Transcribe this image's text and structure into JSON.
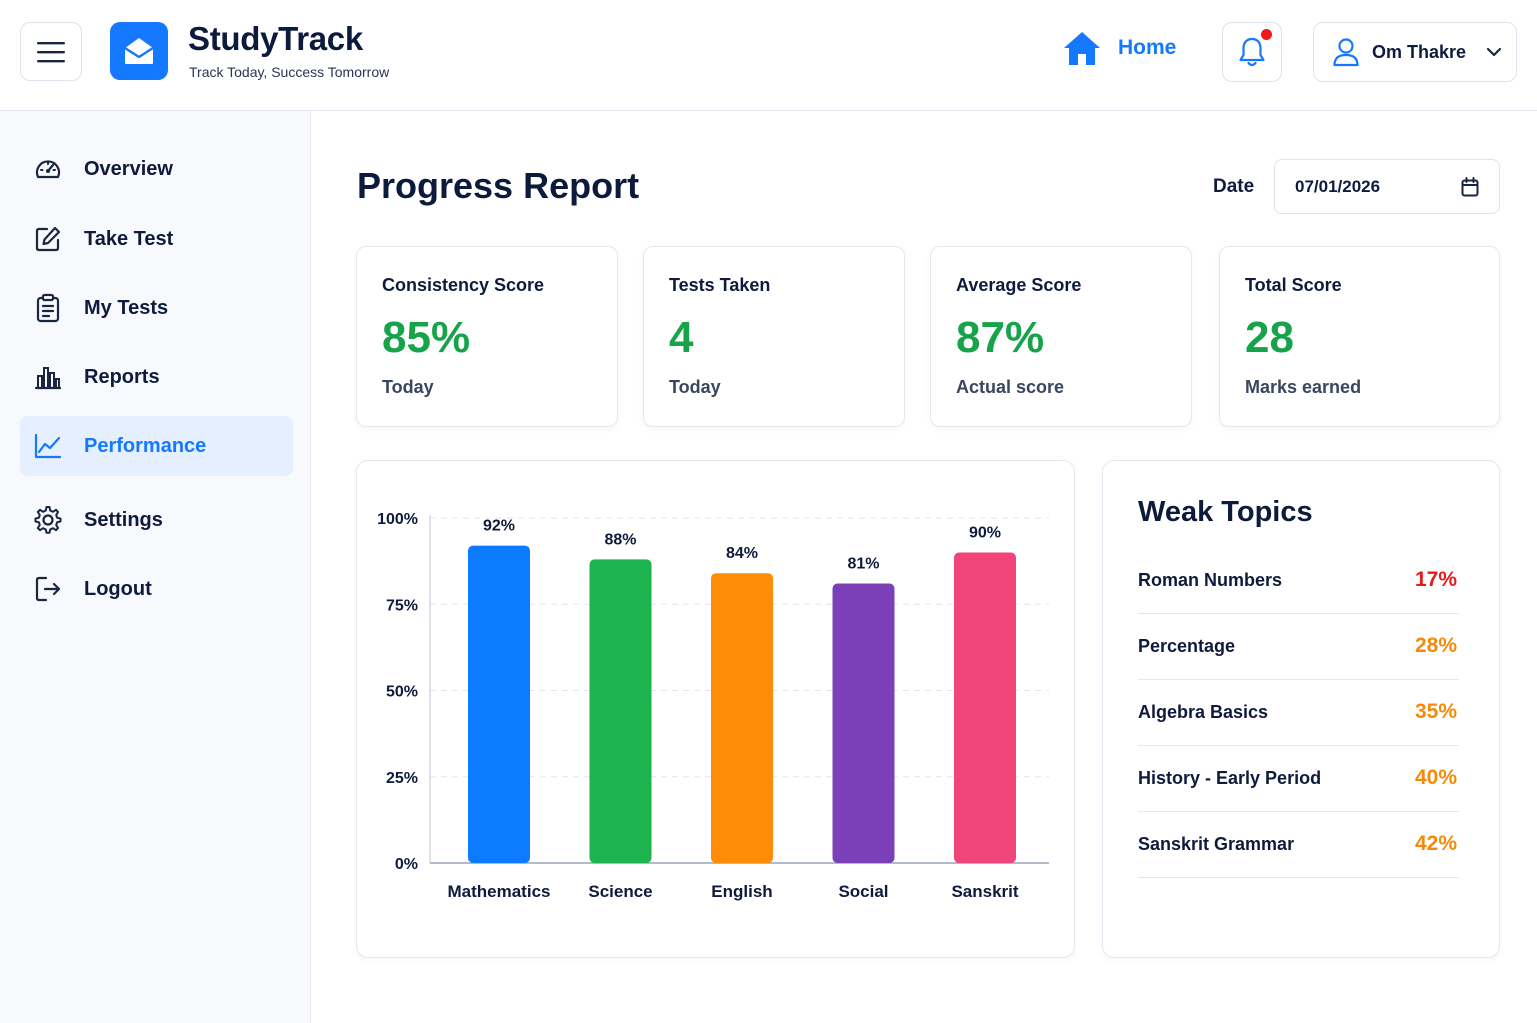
{
  "header": {
    "title": "StudyTrack",
    "tagline": "Track Today, Success Tomorrow",
    "home_label": "Home",
    "user_name": "Om Thakre",
    "accent": "#1479ff",
    "notification_dot_color": "#f01818"
  },
  "sidebar": {
    "items": [
      {
        "label": "Overview",
        "icon": "gauge-icon"
      },
      {
        "label": "Take Test",
        "icon": "edit-icon"
      },
      {
        "label": "My Tests",
        "icon": "clipboard-icon"
      },
      {
        "label": "Reports",
        "icon": "bar-chart-icon"
      },
      {
        "label": "Performance",
        "icon": "trend-line-icon",
        "active": true
      },
      {
        "label": "Settings",
        "icon": "gear-icon"
      },
      {
        "label": "Logout",
        "icon": "logout-icon"
      }
    ]
  },
  "main": {
    "title": "Progress Report",
    "date_label": "Date",
    "date_value": "07/01/2026",
    "stats": [
      {
        "label": "Consistency Score",
        "value": "85%",
        "sub": "Today"
      },
      {
        "label": "Tests Taken",
        "value": "4",
        "sub": "Today"
      },
      {
        "label": "Average Score",
        "value": "87%",
        "sub": "Actual score"
      },
      {
        "label": "Total Score",
        "value": "28",
        "sub": "Marks earned"
      }
    ]
  },
  "chart_data": {
    "type": "bar",
    "categories": [
      "Mathematics",
      "Science",
      "English",
      "Social",
      "Sanskrit"
    ],
    "values": [
      92,
      88,
      84,
      81,
      90
    ],
    "data_labels": [
      "92%",
      "88%",
      "84%",
      "81%",
      "90%"
    ],
    "colors": [
      "#0d7bff",
      "#1db44f",
      "#ff8c06",
      "#7b3fb8",
      "#f0457a"
    ],
    "yticks": [
      "0%",
      "25%",
      "50%",
      "75%",
      "100%"
    ],
    "ylim": [
      0,
      100
    ],
    "grid": true,
    "title": "",
    "xlabel": "",
    "ylabel": ""
  },
  "weak_topics": {
    "title": "Weak Topics",
    "items": [
      {
        "name": "Roman Numbers",
        "pct": "17%",
        "color": "#e31b1b"
      },
      {
        "name": "Percentage",
        "pct": "28%",
        "color": "#f5890a"
      },
      {
        "name": "Algebra Basics",
        "pct": "35%",
        "color": "#f5890a"
      },
      {
        "name": "History - Early Period",
        "pct": "40%",
        "color": "#f5890a"
      },
      {
        "name": "Sanskrit Grammar",
        "pct": "42%",
        "color": "#f5890a"
      }
    ]
  }
}
